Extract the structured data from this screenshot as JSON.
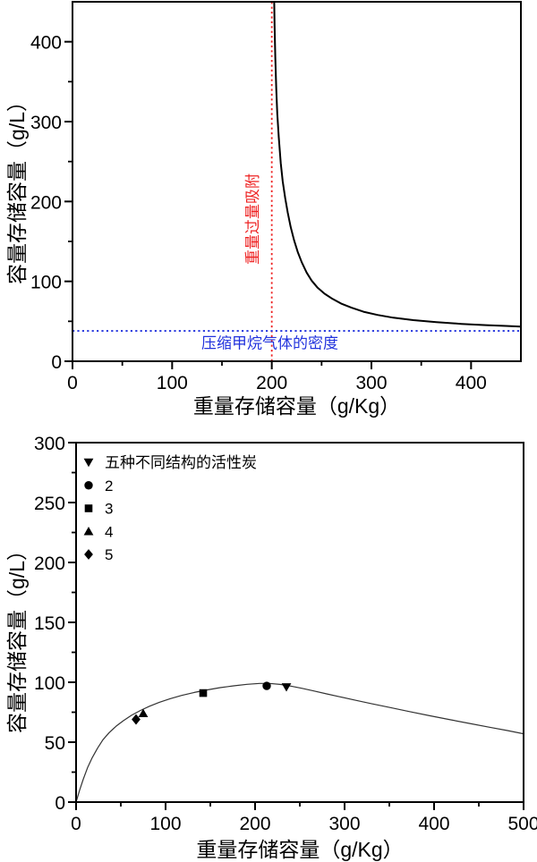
{
  "page": {
    "background": "#ffffff"
  },
  "chart_data": [
    {
      "type": "line",
      "title": "",
      "xlabel": "重量存储容量（g/Kg）",
      "ylabel": "容量存储容量（g/L）",
      "xlim": [
        0,
        450
      ],
      "ylim": [
        0,
        450
      ],
      "xticks": [
        0,
        100,
        200,
        300,
        400
      ],
      "yticks": [
        0,
        100,
        200,
        300,
        400
      ],
      "x_minor_step": 50,
      "y_minor_step": 50,
      "grid": false,
      "legend": null,
      "series": [
        {
          "name": "adsorptive-storage-curve",
          "color": "#000000",
          "width": 2,
          "points": [
            [
              202.2,
              470
            ],
            [
              202.8,
              420
            ],
            [
              203.5,
              380
            ],
            [
              204.5,
              340
            ],
            [
              205.5,
              310
            ],
            [
              207,
              280
            ],
            [
              209,
              248
            ],
            [
              211,
              225
            ],
            [
              213.5,
              204
            ],
            [
              216,
              186
            ],
            [
              219,
              168
            ],
            [
              222.5,
              151
            ],
            [
              226,
              137
            ],
            [
              230,
              124
            ],
            [
              235,
              111
            ],
            [
              240,
              101
            ],
            [
              246,
              92
            ],
            [
              253,
              84.5
            ],
            [
              261,
              78
            ],
            [
              270,
              72
            ],
            [
              280,
              67
            ],
            [
              292,
              62
            ],
            [
              306,
              58
            ],
            [
              322,
              54.5
            ],
            [
              342,
              51.5
            ],
            [
              365,
              49
            ],
            [
              390,
              46.8
            ],
            [
              415,
              45.2
            ],
            [
              435,
              44.2
            ],
            [
              450,
              43.4
            ]
          ]
        }
      ],
      "annotations": [
        {
          "kind": "vline",
          "x": 200,
          "style": "dotted",
          "color": "#ee2222",
          "label": "重量过量吸附",
          "label_x": 186,
          "label_y": 178,
          "label_rotate": -90
        },
        {
          "kind": "hline",
          "y": 38,
          "style": "dotted",
          "color": "#2233dd",
          "label": "压缩甲烷气体的密度",
          "label_x": 198,
          "label_y": 16,
          "label_rotate": 0
        }
      ]
    },
    {
      "type": "line+scatter",
      "title": "",
      "xlabel": "重量存储容量（g/Kg）",
      "ylabel": "容量存储容量（g/L）",
      "xlim": [
        0,
        500
      ],
      "ylim": [
        0,
        300
      ],
      "xticks": [
        0,
        100,
        200,
        300,
        400,
        500
      ],
      "yticks": [
        0,
        50,
        100,
        150,
        200,
        250,
        300
      ],
      "x_minor_step": 50,
      "y_minor_step": 25,
      "grid": false,
      "series": [
        {
          "name": "optimal-storage-curve",
          "color": "#333333",
          "width": 1.2,
          "points": [
            [
              0,
              0
            ],
            [
              4,
              10
            ],
            [
              8,
              19
            ],
            [
              13,
              29
            ],
            [
              18,
              37
            ],
            [
              24,
              45
            ],
            [
              30,
              52
            ],
            [
              37,
              58
            ],
            [
              45,
              63.5
            ],
            [
              53,
              68
            ],
            [
              62,
              72.5
            ],
            [
              72,
              76.5
            ],
            [
              82,
              80
            ],
            [
              93,
              83.3
            ],
            [
              105,
              86.3
            ],
            [
              118,
              89
            ],
            [
              132,
              91.5
            ],
            [
              146,
              93.6
            ],
            [
              161,
              95.5
            ],
            [
              176,
              97
            ],
            [
              191,
              98.3
            ],
            [
              205,
              99
            ],
            [
              216,
              99
            ],
            [
              228,
              98.2
            ],
            [
              240,
              96.8
            ],
            [
              252,
              95
            ],
            [
              265,
              92.8
            ],
            [
              280,
              90.3
            ],
            [
              295,
              87.8
            ],
            [
              312,
              85
            ],
            [
              330,
              82.2
            ],
            [
              350,
              79
            ],
            [
              372,
              75.6
            ],
            [
              395,
              72.1
            ],
            [
              418,
              68.7
            ],
            [
              440,
              65.6
            ],
            [
              462,
              62.5
            ],
            [
              482,
              59.7
            ],
            [
              500,
              57
            ]
          ]
        }
      ],
      "legend": {
        "position": "top-left",
        "items": [
          {
            "marker": "triangle-down",
            "label": "五种不同结构的活性炭"
          },
          {
            "marker": "circle",
            "label": "2"
          },
          {
            "marker": "square",
            "label": "3"
          },
          {
            "marker": "triangle-up",
            "label": "4"
          },
          {
            "marker": "diamond",
            "label": "5"
          }
        ]
      },
      "scatter": [
        {
          "marker": "triangle-down",
          "series": "五种不同结构的活性炭",
          "x": 235,
          "y": 96
        },
        {
          "marker": "circle",
          "series": "2",
          "x": 213,
          "y": 97
        },
        {
          "marker": "square",
          "series": "3",
          "x": 142,
          "y": 91
        },
        {
          "marker": "triangle-up",
          "series": "4",
          "x": 75,
          "y": 74
        },
        {
          "marker": "diamond",
          "series": "5",
          "x": 67,
          "y": 69
        }
      ],
      "annotations": []
    }
  ]
}
